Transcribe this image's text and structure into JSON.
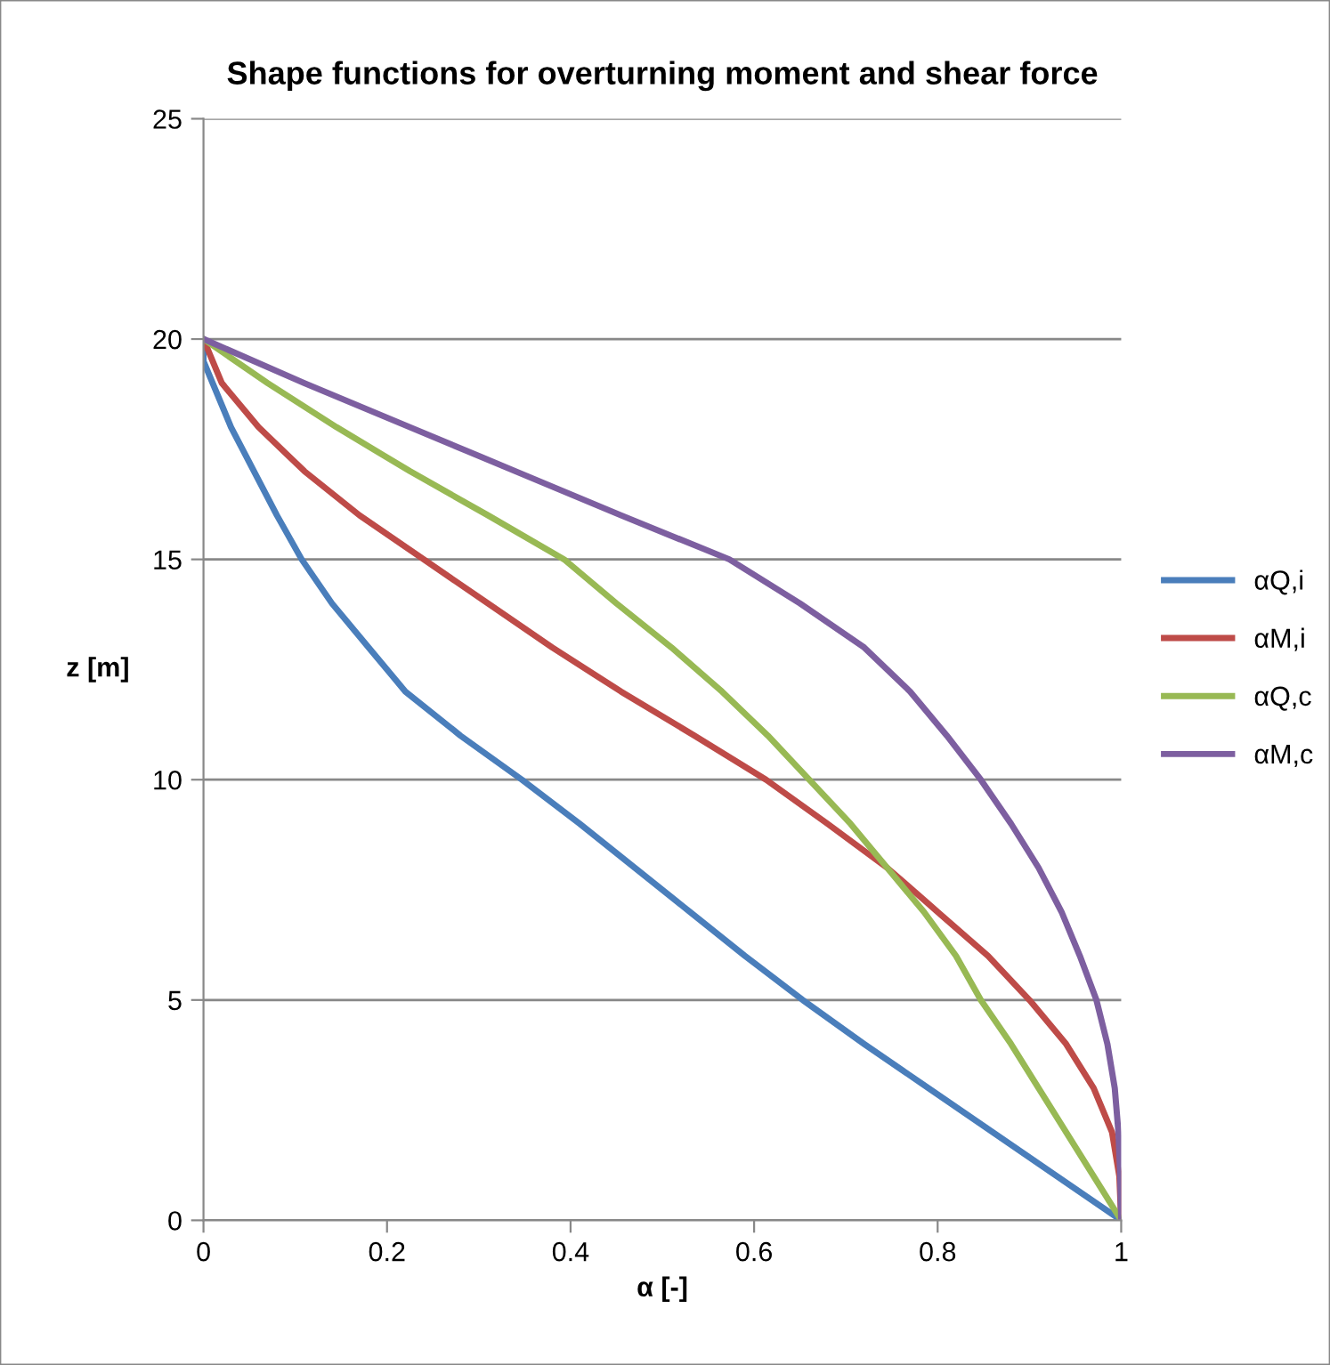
{
  "chart_data": {
    "type": "line",
    "title": "Shape functions for overturning moment and shear force",
    "xlabel": "α [-]",
    "ylabel": "z [m]",
    "xlim": [
      0,
      1
    ],
    "xticks": [
      0,
      0.2,
      0.4,
      0.6,
      0.8,
      1
    ],
    "ylim": [
      0,
      25
    ],
    "yticks": [
      0,
      5,
      10,
      15,
      20,
      25
    ],
    "grid": "y",
    "legend": "right",
    "series": [
      {
        "name": "αQ,i",
        "color": "#4a7ebb",
        "x": [
          0,
          0.0,
          0.01,
          0.03,
          0.055,
          0.08,
          0.107,
          0.14,
          0.18,
          0.22,
          0.28,
          0.347,
          0.41,
          0.47,
          0.53,
          0.59,
          0.653,
          0.72,
          0.79,
          0.86,
          0.93,
          1
        ],
        "values": [
          20,
          19.5,
          19,
          18,
          17,
          16,
          15,
          14,
          13,
          12,
          11,
          10,
          9,
          8,
          7,
          6,
          5,
          4,
          3,
          2,
          1,
          0
        ]
      },
      {
        "name": "αM,i",
        "color": "#be4b48",
        "x": [
          0,
          0.02,
          0.06,
          0.11,
          0.17,
          0.24,
          0.31,
          0.38,
          0.455,
          0.535,
          0.613,
          0.68,
          0.745,
          0.8,
          0.855,
          0.9,
          0.94,
          0.97,
          0.99,
          0.998,
          1
        ],
        "values": [
          20,
          19,
          18,
          17,
          16,
          15,
          14,
          13,
          12,
          11,
          10,
          9,
          8,
          7,
          6,
          5,
          4,
          3,
          2,
          1,
          0
        ]
      },
      {
        "name": "αQ,c",
        "color": "#98b954",
        "x": [
          0,
          0.07,
          0.145,
          0.225,
          0.31,
          0.393,
          0.45,
          0.51,
          0.565,
          0.615,
          0.66,
          0.705,
          0.745,
          0.785,
          0.82,
          0.847,
          0.88,
          0.91,
          0.94,
          0.97,
          1
        ],
        "values": [
          20,
          19,
          18,
          17,
          16,
          15,
          14,
          13,
          12,
          11,
          10,
          9,
          8,
          7,
          6,
          5,
          4,
          3,
          2,
          1,
          0
        ]
      },
      {
        "name": "αM,c",
        "color": "#7d5fa0",
        "x": [
          0,
          0.11,
          0.225,
          0.34,
          0.455,
          0.573,
          0.65,
          0.72,
          0.77,
          0.81,
          0.847,
          0.88,
          0.91,
          0.935,
          0.955,
          0.973,
          0.985,
          0.993,
          0.997,
          0.999,
          1
        ],
        "values": [
          20,
          19,
          18,
          17,
          16,
          15,
          14,
          13,
          12,
          11,
          10,
          9,
          8,
          7,
          6,
          5,
          4,
          3,
          2,
          1,
          0
        ]
      }
    ]
  }
}
